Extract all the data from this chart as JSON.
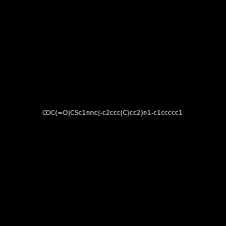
{
  "smiles": "COC(=O)CSc1nnc(-c2ccc(C)cc2)n1-c1ccccc1",
  "background_color": "#000000",
  "figsize": [
    2.5,
    2.5
  ],
  "dpi": 100
}
